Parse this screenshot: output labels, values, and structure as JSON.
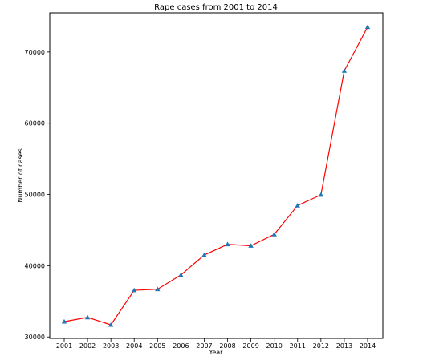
{
  "chart_data": {
    "type": "line",
    "title": "Rape cases from 2001 to 2014",
    "xlabel": "Year",
    "ylabel": "Number of cases",
    "x": [
      "2001",
      "2002",
      "2003",
      "2004",
      "2005",
      "2006",
      "2007",
      "2008",
      "2009",
      "2010",
      "2011",
      "2012",
      "2013",
      "2014"
    ],
    "series": [
      {
        "values": [
          32150,
          32750,
          31700,
          36550,
          36700,
          38700,
          41500,
          43000,
          42800,
          44400,
          48450,
          49950,
          67350,
          73500
        ],
        "line_color": "#ff0000",
        "marker": "triangle",
        "marker_color": "#1f77b4"
      }
    ],
    "yticks": [
      30000,
      40000,
      50000,
      60000,
      70000
    ],
    "ylim": [
      29800,
      75500
    ],
    "grid": false,
    "legend": false
  }
}
